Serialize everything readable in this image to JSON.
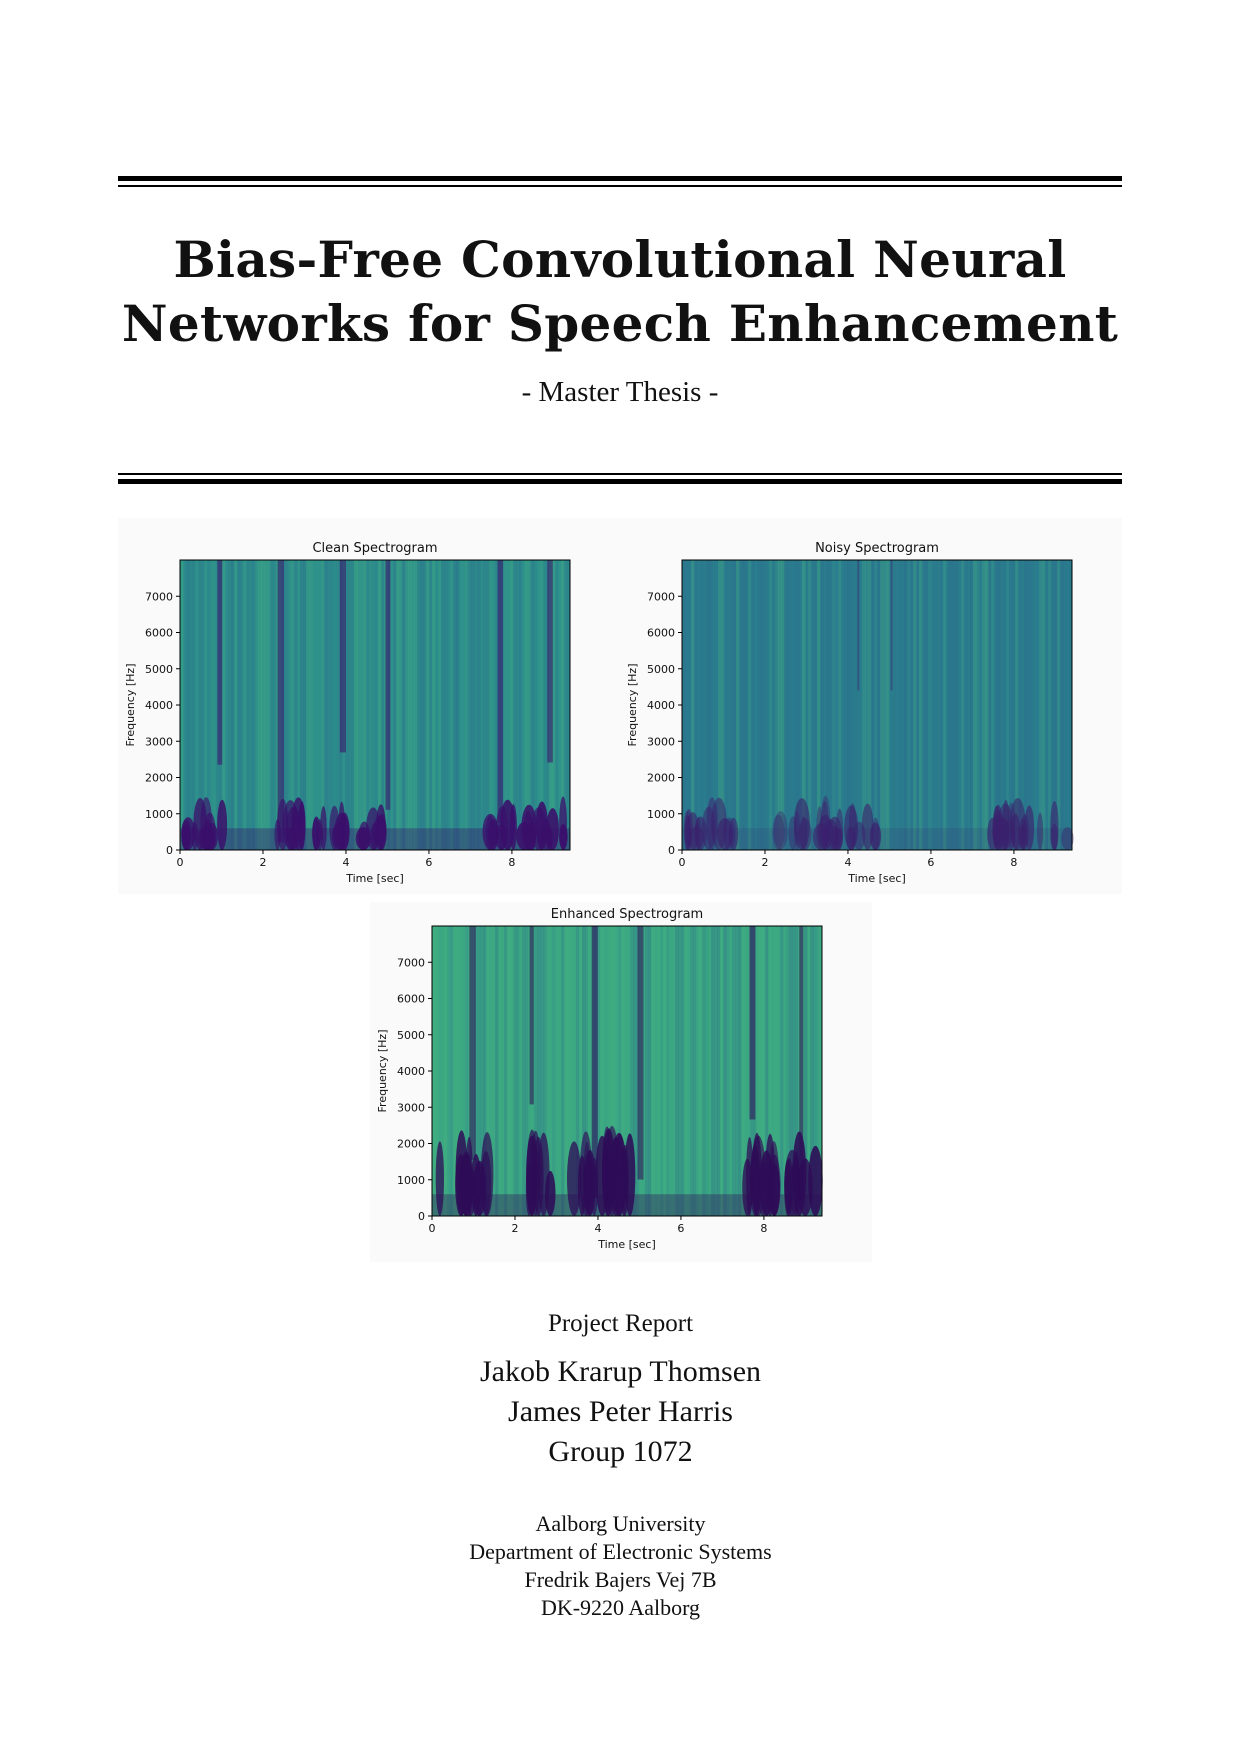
{
  "document": {
    "title_lines": [
      "Bias-Free Convolutional Neural",
      "Networks for Speech Enhancement"
    ],
    "subtitle": "- Master Thesis -",
    "report_type": "Project Report",
    "authors": [
      "Jakob Krarup Thomsen",
      "James Peter Harris",
      "Group 1072"
    ],
    "address": [
      "Aalborg University",
      "Department of Electronic Systems",
      "Fredrik Bajers Vej 7B",
      "DK-9220 Aalborg"
    ]
  },
  "chart_data": [
    {
      "type": "heatmap",
      "title": "Clean Spectrogram",
      "xlabel": "Time [sec]",
      "ylabel": "Frequency [Hz]",
      "xlim": [
        0,
        9.4
      ],
      "ylim": [
        0,
        8000
      ],
      "xticks": [
        0,
        2,
        4,
        6,
        8
      ],
      "yticks": [
        0,
        1000,
        2000,
        3000,
        4000,
        5000,
        6000,
        7000
      ],
      "colormap": "viridis",
      "bg": "#2d8e8c",
      "dark": "#3a0f6b"
    },
    {
      "type": "heatmap",
      "title": "Noisy Spectrogram",
      "xlabel": "Time [sec]",
      "ylabel": "Frequency [Hz]",
      "xlim": [
        0,
        9.4
      ],
      "ylim": [
        0,
        8000
      ],
      "xticks": [
        0,
        2,
        4,
        6,
        8
      ],
      "yticks": [
        0,
        1000,
        2000,
        3000,
        4000,
        5000,
        6000,
        7000
      ],
      "colormap": "viridis",
      "bg": "#2b7f8e",
      "dark": "#3b1f6d"
    },
    {
      "type": "heatmap",
      "title": "Enhanced Spectrogram",
      "xlabel": "Time [sec]",
      "ylabel": "Frequency [Hz]",
      "xlim": [
        0,
        9.4
      ],
      "ylim": [
        0,
        8000
      ],
      "xticks": [
        0,
        2,
        4,
        6,
        8
      ],
      "yticks": [
        0,
        1000,
        2000,
        3000,
        4000,
        5000,
        6000,
        7000
      ],
      "colormap": "viridis",
      "bg": "#3aa584",
      "dark": "#2e0b57"
    }
  ]
}
